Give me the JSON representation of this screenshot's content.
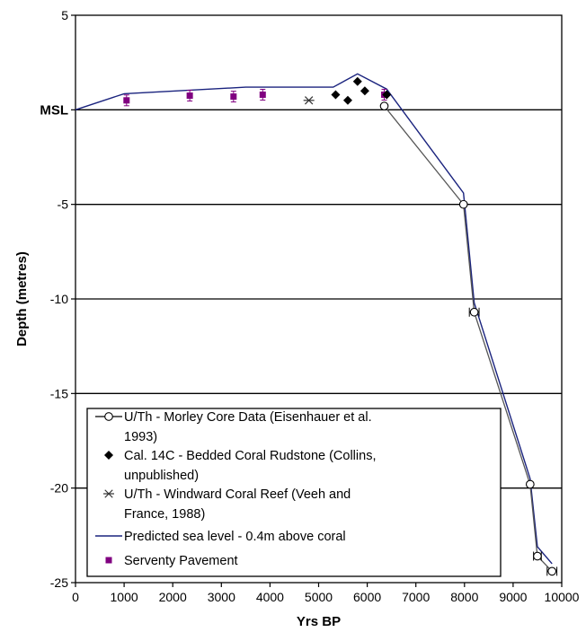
{
  "chart_data": {
    "type": "scatter",
    "title": "",
    "xlabel": "Yrs BP",
    "ylabel": "Depth (metres)",
    "xlim": [
      0,
      10000
    ],
    "ylim": [
      -25,
      5
    ],
    "xticks": [
      0,
      1000,
      2000,
      3000,
      4000,
      5000,
      6000,
      7000,
      8000,
      9000,
      10000
    ],
    "xtick_labels": [
      "0",
      "1000",
      "2000",
      "3000",
      "4000",
      "5000",
      "6000",
      "7000",
      "8000",
      "9000",
      "10000"
    ],
    "yticks": [
      5,
      0,
      -5,
      -10,
      -15,
      -20,
      -25
    ],
    "ytick_labels": [
      "5",
      "MSL",
      "-5",
      "-10",
      "-15",
      "-20",
      "-25"
    ],
    "grid": "horizontal",
    "legend_position": "lower-left",
    "series": [
      {
        "name": "U/Th - Morley Core Data (Eisenhauer et al. 1993)",
        "style": "open-circle-line",
        "color": "#000000",
        "line_color": "#555555",
        "points": [
          {
            "x": 6350,
            "y": 0.2
          },
          {
            "x": 7980,
            "y": -5.0
          },
          {
            "x": 8200,
            "y": -10.7
          },
          {
            "x": 9350,
            "y": -19.8
          },
          {
            "x": 9500,
            "y": -23.6
          },
          {
            "x": 9800,
            "y": -24.4
          }
        ],
        "x_error": [
          0,
          0,
          100,
          0,
          80,
          100
        ]
      },
      {
        "name": "Cal. 14C - Bedded Coral Rudstone (Collins, unpublished)",
        "style": "filled-diamond",
        "color": "#000000",
        "points": [
          {
            "x": 5350,
            "y": 0.8
          },
          {
            "x": 5600,
            "y": 0.5
          },
          {
            "x": 5800,
            "y": 1.5
          },
          {
            "x": 5950,
            "y": 1.0
          },
          {
            "x": 6400,
            "y": 0.8
          }
        ]
      },
      {
        "name": "U/Th - Windward Coral Reef (Veeh and France, 1988)",
        "style": "asterisk",
        "color": "#333333",
        "points": [
          {
            "x": 4800,
            "y": 0.5
          }
        ]
      },
      {
        "name": "Predicted sea level - 0.4m above coral",
        "style": "line",
        "color": "#1a237e",
        "points": [
          {
            "x": 0,
            "y": 0
          },
          {
            "x": 1000,
            "y": 0.85
          },
          {
            "x": 3500,
            "y": 1.2
          },
          {
            "x": 5300,
            "y": 1.2
          },
          {
            "x": 5800,
            "y": 1.9
          },
          {
            "x": 6400,
            "y": 1.1
          },
          {
            "x": 7980,
            "y": -4.4
          },
          {
            "x": 8200,
            "y": -10.2
          },
          {
            "x": 9350,
            "y": -19.5
          },
          {
            "x": 9500,
            "y": -23.1
          },
          {
            "x": 9800,
            "y": -24.0
          }
        ]
      },
      {
        "name": "Serventy Pavement",
        "style": "filled-square-errorbar",
        "color": "#800080",
        "points": [
          {
            "x": 1050,
            "y": 0.5
          },
          {
            "x": 2350,
            "y": 0.75
          },
          {
            "x": 3250,
            "y": 0.7
          },
          {
            "x": 3850,
            "y": 0.8
          },
          {
            "x": 6350,
            "y": 0.8
          }
        ]
      }
    ],
    "legend": {
      "entries": [
        [
          "U/Th - Morley Core Data (Eisenhauer et al.",
          "1993)"
        ],
        [
          "Cal. 14C - Bedded Coral Rudstone (Collins,",
          "unpublished)"
        ],
        [
          "U/Th - Windward Coral Reef (Veeh and",
          "France, 1988)"
        ],
        [
          "Predicted sea level - 0.4m above coral"
        ],
        [
          "Serventy Pavement"
        ]
      ]
    }
  }
}
